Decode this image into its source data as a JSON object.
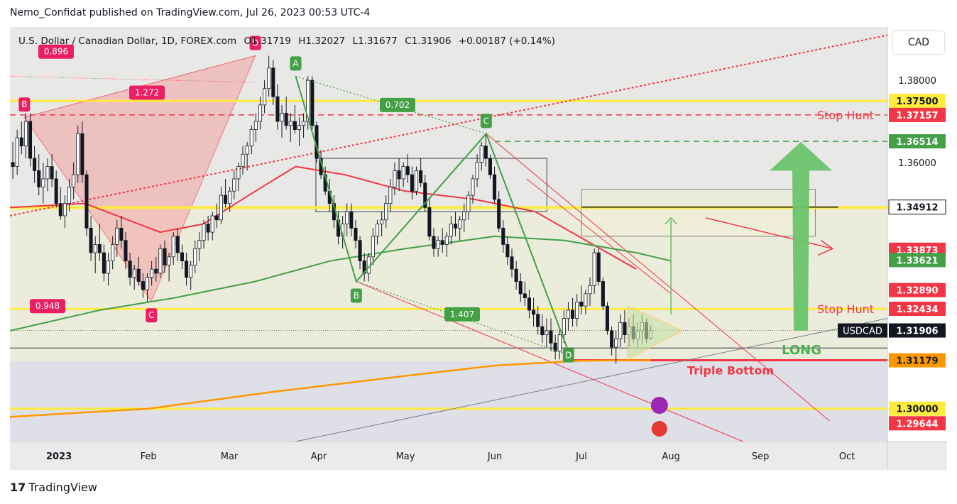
{
  "header": {
    "published": "Nemo_Confidat published on TradingView.com, Jul 26, 2023 00:53 UTC-4"
  },
  "legend": {
    "symbol": "U.S. Dollar / Canadian Dollar, 1D, FOREX.com",
    "open": "O1.31719",
    "high": "H1.32027",
    "low": "L1.31677",
    "close": "C1.31906",
    "change": "+0.00187 (+0.14%)"
  },
  "currency_button": "CAD",
  "footer": {
    "brand": "TradingView"
  },
  "colors": {
    "up": "#ffffff",
    "down": "#131722",
    "red": "#f23645",
    "green": "#43a047",
    "yellow": "#ffeb3b",
    "orange": "#ff9800"
  },
  "chart_data": {
    "type": "candlestick",
    "symbol": "USDCAD",
    "timeframe": "1D",
    "x_ticks": [
      {
        "label": "2023",
        "date": "2023-01-01"
      },
      {
        "label": "Feb",
        "date": "2023-02-01"
      },
      {
        "label": "Mar",
        "date": "2023-03-01"
      },
      {
        "label": "Apr",
        "date": "2023-04-01"
      },
      {
        "label": "May",
        "date": "2023-05-01"
      },
      {
        "label": "Jun",
        "date": "2023-06-01"
      },
      {
        "label": "Jul",
        "date": "2023-07-01"
      },
      {
        "label": "Aug",
        "date": "2023-08-01"
      },
      {
        "label": "Sep",
        "date": "2023-09-01"
      },
      {
        "label": "Oct",
        "date": "2023-10-01"
      }
    ],
    "x_range": [
      "2022-12-15",
      "2023-10-15"
    ],
    "y_range": [
      1.292,
      1.393
    ],
    "y_ticks": [
      "1.38000",
      "1.36000"
    ],
    "y_tick_values": [
      1.38,
      1.36
    ],
    "price_labels": [
      {
        "text": "1.37500",
        "value": 1.375,
        "bg": "#ffeb3b",
        "fg": "#131722"
      },
      {
        "text": "1.37157",
        "value": 1.37157,
        "bg": "#f23645",
        "fg": "#ffffff"
      },
      {
        "text": "1.36514",
        "value": 1.36514,
        "bg": "#43a047",
        "fg": "#ffffff"
      },
      {
        "text": "1.34912",
        "value": 1.34912,
        "bg": "#ffffff",
        "fg": "#131722"
      },
      {
        "text": "1.33873",
        "value": 1.33873,
        "bg": "#f23645",
        "fg": "#ffffff"
      },
      {
        "text": "1.33621",
        "value": 1.33621,
        "bg": "#43a047",
        "fg": "#ffffff"
      },
      {
        "text": "1.32890",
        "value": 1.3289,
        "bg": "#f23645",
        "fg": "#ffffff"
      },
      {
        "text": "1.32434",
        "value": 1.32434,
        "bg": "#f23645",
        "fg": "#ffffff"
      },
      {
        "text": "1.31906",
        "value": 1.31906,
        "bg": "#131722",
        "fg": "#ffffff"
      },
      {
        "text": "1.31179",
        "value": 1.31179,
        "bg": "#ff9800",
        "fg": "#131722"
      },
      {
        "text": "1.30000",
        "value": 1.3,
        "bg": "#ffeb3b",
        "fg": "#131722"
      },
      {
        "text": "1.29644",
        "value": 1.29644,
        "bg": "#f23645",
        "fg": "#ffffff"
      }
    ],
    "current_symbol_label": "USDCAD",
    "horizontal_levels": [
      1.375,
      1.349,
      1.3243,
      1.3
    ],
    "stop_hunt_levels": [
      1.37157,
      1.32434
    ],
    "annotations": [
      {
        "text": "Stop Hunt",
        "near": 1.37157
      },
      {
        "text": "Stop Hunt",
        "near": 1.32434
      },
      {
        "text": "LONG",
        "near": 1.3143
      },
      {
        "text": "Triple Bottom",
        "near": 1.3094
      }
    ],
    "harmonic_1": {
      "points": [
        {
          "label": "B",
          "date": "2022-12-20",
          "price": 1.371
        },
        {
          "label": "C",
          "date": "2023-02-02",
          "price": 1.3262
        },
        {
          "label": "D",
          "date": "2023-03-10",
          "price": 1.386
        }
      ],
      "ratios": [
        "0.896",
        "1.272",
        "0.948"
      ]
    },
    "harmonic_2": {
      "points": [
        {
          "label": "A",
          "date": "2023-03-24",
          "price": 1.381
        },
        {
          "label": "B",
          "date": "2023-04-14",
          "price": 1.331
        },
        {
          "label": "C",
          "date": "2023-05-29",
          "price": 1.367
        },
        {
          "label": "D",
          "date": "2023-06-27",
          "price": 1.313
        }
      ],
      "ratios": [
        "0.702",
        "1.407"
      ]
    },
    "candles_ohlc": [
      [
        1.36,
        1.365,
        1.356,
        1.359
      ],
      [
        1.359,
        1.368,
        1.357,
        1.366
      ],
      [
        1.366,
        1.37,
        1.362,
        1.364
      ],
      [
        1.364,
        1.372,
        1.361,
        1.37
      ],
      [
        1.37,
        1.372,
        1.359,
        1.361
      ],
      [
        1.361,
        1.364,
        1.355,
        1.358
      ],
      [
        1.358,
        1.362,
        1.352,
        1.354
      ],
      [
        1.354,
        1.36,
        1.35,
        1.356
      ],
      [
        1.356,
        1.361,
        1.353,
        1.359
      ],
      [
        1.359,
        1.362,
        1.354,
        1.356
      ],
      [
        1.356,
        1.358,
        1.349,
        1.35
      ],
      [
        1.35,
        1.354,
        1.346,
        1.347
      ],
      [
        1.347,
        1.352,
        1.344,
        1.35
      ],
      [
        1.35,
        1.356,
        1.348,
        1.354
      ],
      [
        1.354,
        1.36,
        1.351,
        1.357
      ],
      [
        1.357,
        1.369,
        1.355,
        1.367
      ],
      [
        1.367,
        1.37,
        1.355,
        1.357
      ],
      [
        1.357,
        1.358,
        1.342,
        1.344
      ],
      [
        1.344,
        1.347,
        1.336,
        1.338
      ],
      [
        1.338,
        1.342,
        1.333,
        1.34
      ],
      [
        1.34,
        1.345,
        1.336,
        1.338
      ],
      [
        1.338,
        1.34,
        1.331,
        1.333
      ],
      [
        1.333,
        1.338,
        1.33,
        1.336
      ],
      [
        1.336,
        1.342,
        1.334,
        1.34
      ],
      [
        1.34,
        1.346,
        1.337,
        1.344
      ],
      [
        1.344,
        1.347,
        1.339,
        1.341
      ],
      [
        1.341,
        1.343,
        1.334,
        1.336
      ],
      [
        1.336,
        1.338,
        1.33,
        1.332
      ],
      [
        1.332,
        1.335,
        1.329,
        1.334
      ],
      [
        1.334,
        1.337,
        1.33,
        1.331
      ],
      [
        1.331,
        1.333,
        1.327,
        1.329
      ],
      [
        1.329,
        1.333,
        1.326,
        1.332
      ],
      [
        1.332,
        1.336,
        1.33,
        1.334
      ],
      [
        1.334,
        1.337,
        1.331,
        1.333
      ],
      [
        1.333,
        1.34,
        1.332,
        1.339
      ],
      [
        1.339,
        1.341,
        1.333,
        1.335
      ],
      [
        1.335,
        1.338,
        1.331,
        1.337
      ],
      [
        1.337,
        1.343,
        1.335,
        1.342
      ],
      [
        1.342,
        1.344,
        1.336,
        1.338
      ],
      [
        1.338,
        1.34,
        1.334,
        1.336
      ],
      [
        1.336,
        1.338,
        1.33,
        1.332
      ],
      [
        1.332,
        1.336,
        1.329,
        1.335
      ],
      [
        1.335,
        1.341,
        1.333,
        1.339
      ],
      [
        1.339,
        1.343,
        1.336,
        1.341
      ],
      [
        1.341,
        1.346,
        1.339,
        1.345
      ],
      [
        1.345,
        1.347,
        1.341,
        1.343
      ],
      [
        1.343,
        1.348,
        1.341,
        1.347
      ],
      [
        1.347,
        1.35,
        1.344,
        1.346
      ],
      [
        1.346,
        1.354,
        1.345,
        1.352
      ],
      [
        1.352,
        1.356,
        1.349,
        1.35
      ],
      [
        1.35,
        1.354,
        1.348,
        1.353
      ],
      [
        1.353,
        1.358,
        1.351,
        1.356
      ],
      [
        1.356,
        1.36,
        1.353,
        1.359
      ],
      [
        1.359,
        1.364,
        1.357,
        1.362
      ],
      [
        1.362,
        1.365,
        1.358,
        1.364
      ],
      [
        1.364,
        1.369,
        1.362,
        1.368
      ],
      [
        1.368,
        1.372,
        1.365,
        1.37
      ],
      [
        1.37,
        1.376,
        1.368,
        1.374
      ],
      [
        1.374,
        1.38,
        1.372,
        1.378
      ],
      [
        1.378,
        1.386,
        1.376,
        1.383
      ],
      [
        1.383,
        1.385,
        1.374,
        1.376
      ],
      [
        1.376,
        1.379,
        1.368,
        1.37
      ],
      [
        1.37,
        1.374,
        1.366,
        1.372
      ],
      [
        1.372,
        1.376,
        1.368,
        1.369
      ],
      [
        1.369,
        1.372,
        1.365,
        1.37
      ],
      [
        1.37,
        1.374,
        1.367,
        1.368
      ],
      [
        1.368,
        1.371,
        1.364,
        1.369
      ],
      [
        1.369,
        1.372,
        1.366,
        1.37
      ],
      [
        1.37,
        1.381,
        1.368,
        1.38
      ],
      [
        1.38,
        1.381,
        1.368,
        1.369
      ],
      [
        1.369,
        1.37,
        1.36,
        1.361
      ],
      [
        1.361,
        1.363,
        1.356,
        1.357
      ],
      [
        1.357,
        1.359,
        1.352,
        1.353
      ],
      [
        1.353,
        1.356,
        1.348,
        1.35
      ],
      [
        1.35,
        1.352,
        1.344,
        1.346
      ],
      [
        1.346,
        1.348,
        1.34,
        1.342
      ],
      [
        1.342,
        1.347,
        1.339,
        1.345
      ],
      [
        1.345,
        1.35,
        1.342,
        1.348
      ],
      [
        1.348,
        1.35,
        1.342,
        1.344
      ],
      [
        1.344,
        1.346,
        1.339,
        1.341
      ],
      [
        1.341,
        1.342,
        1.334,
        1.336
      ],
      [
        1.336,
        1.338,
        1.331,
        1.333
      ],
      [
        1.333,
        1.338,
        1.331,
        1.337
      ],
      [
        1.337,
        1.344,
        1.335,
        1.342
      ],
      [
        1.342,
        1.346,
        1.34,
        1.345
      ],
      [
        1.345,
        1.348,
        1.342,
        1.346
      ],
      [
        1.346,
        1.352,
        1.344,
        1.35
      ],
      [
        1.35,
        1.356,
        1.348,
        1.354
      ],
      [
        1.354,
        1.36,
        1.352,
        1.358
      ],
      [
        1.358,
        1.361,
        1.353,
        1.356
      ],
      [
        1.356,
        1.36,
        1.354,
        1.359
      ],
      [
        1.359,
        1.362,
        1.355,
        1.357
      ],
      [
        1.357,
        1.359,
        1.351,
        1.353
      ],
      [
        1.353,
        1.359,
        1.352,
        1.358
      ],
      [
        1.358,
        1.361,
        1.354,
        1.355
      ],
      [
        1.355,
        1.357,
        1.348,
        1.349
      ],
      [
        1.349,
        1.351,
        1.341,
        1.342
      ],
      [
        1.342,
        1.344,
        1.337,
        1.339
      ],
      [
        1.339,
        1.342,
        1.337,
        1.341
      ],
      [
        1.341,
        1.344,
        1.338,
        1.34
      ],
      [
        1.34,
        1.343,
        1.337,
        1.342
      ],
      [
        1.342,
        1.347,
        1.34,
        1.345
      ],
      [
        1.345,
        1.348,
        1.342,
        1.344
      ],
      [
        1.344,
        1.347,
        1.341,
        1.346
      ],
      [
        1.346,
        1.35,
        1.343,
        1.348
      ],
      [
        1.348,
        1.353,
        1.346,
        1.352
      ],
      [
        1.352,
        1.357,
        1.35,
        1.356
      ],
      [
        1.356,
        1.362,
        1.354,
        1.36
      ],
      [
        1.36,
        1.365,
        1.358,
        1.364
      ],
      [
        1.364,
        1.367,
        1.359,
        1.361
      ],
      [
        1.361,
        1.362,
        1.356,
        1.357
      ],
      [
        1.357,
        1.359,
        1.35,
        1.351
      ],
      [
        1.351,
        1.353,
        1.343,
        1.344
      ],
      [
        1.344,
        1.346,
        1.338,
        1.34
      ],
      [
        1.34,
        1.342,
        1.335,
        1.337
      ],
      [
        1.337,
        1.339,
        1.332,
        1.334
      ],
      [
        1.334,
        1.336,
        1.329,
        1.331
      ],
      [
        1.331,
        1.333,
        1.326,
        1.328
      ],
      [
        1.328,
        1.331,
        1.325,
        1.327
      ],
      [
        1.327,
        1.329,
        1.322,
        1.324
      ],
      [
        1.324,
        1.327,
        1.32,
        1.323
      ],
      [
        1.323,
        1.325,
        1.318,
        1.32
      ],
      [
        1.32,
        1.323,
        1.316,
        1.318
      ],
      [
        1.318,
        1.322,
        1.315,
        1.319
      ],
      [
        1.319,
        1.322,
        1.314,
        1.316
      ],
      [
        1.316,
        1.318,
        1.312,
        1.314
      ],
      [
        1.314,
        1.32,
        1.312,
        1.318
      ],
      [
        1.318,
        1.324,
        1.316,
        1.322
      ],
      [
        1.322,
        1.326,
        1.319,
        1.324
      ],
      [
        1.324,
        1.327,
        1.32,
        1.322
      ],
      [
        1.322,
        1.328,
        1.32,
        1.326
      ],
      [
        1.326,
        1.33,
        1.323,
        1.325
      ],
      [
        1.325,
        1.329,
        1.323,
        1.328
      ],
      [
        1.328,
        1.332,
        1.325,
        1.33
      ],
      [
        1.33,
        1.339,
        1.328,
        1.338
      ],
      [
        1.338,
        1.339,
        1.33,
        1.331
      ],
      [
        1.331,
        1.332,
        1.324,
        1.325
      ],
      [
        1.325,
        1.326,
        1.318,
        1.319
      ],
      [
        1.319,
        1.32,
        1.313,
        1.315
      ],
      [
        1.315,
        1.319,
        1.311,
        1.317
      ],
      [
        1.317,
        1.323,
        1.315,
        1.321
      ],
      [
        1.321,
        1.324,
        1.316,
        1.318
      ],
      [
        1.318,
        1.322,
        1.315,
        1.32
      ],
      [
        1.32,
        1.323,
        1.316,
        1.317
      ],
      [
        1.317,
        1.321,
        1.315,
        1.319
      ],
      [
        1.319,
        1.323,
        1.316,
        1.321
      ],
      [
        1.321,
        1.322,
        1.316,
        1.317
      ],
      [
        1.3172,
        1.3203,
        1.3168,
        1.3191
      ]
    ]
  }
}
